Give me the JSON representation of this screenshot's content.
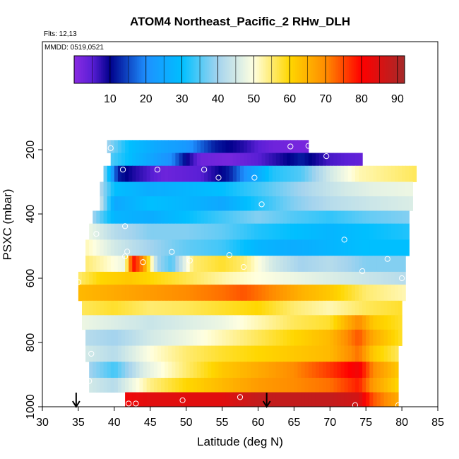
{
  "chart_data": {
    "type": "heatmap",
    "title": "ATOM4 Northeast_Pacific_2 RHw_DLH",
    "flights_note": "Flts: 12,13",
    "dates_note": "MMDD: 0519,0521",
    "xlabel": "Latitude (deg N)",
    "ylabel": "PSXC (mbar)",
    "xlim": [
      30,
      85
    ],
    "ylim": [
      1000,
      0
    ],
    "x_ticks": [
      30,
      35,
      40,
      45,
      50,
      55,
      60,
      65,
      70,
      75,
      80,
      85
    ],
    "y_ticks": [
      200,
      400,
      600,
      800,
      1000
    ],
    "colorbar": {
      "range": [
        0,
        92
      ],
      "ticks": [
        10,
        20,
        30,
        40,
        50,
        60,
        70,
        80,
        90
      ],
      "stops": [
        {
          "v": 0,
          "color": "#8a2be2"
        },
        {
          "v": 5,
          "color": "#5a1fd6"
        },
        {
          "v": 10,
          "color": "#00008b"
        },
        {
          "v": 20,
          "color": "#1e90ff"
        },
        {
          "v": 30,
          "color": "#00bfff"
        },
        {
          "v": 40,
          "color": "#a4d3ee"
        },
        {
          "v": 50,
          "color": "#ffffe0"
        },
        {
          "v": 60,
          "color": "#ffd700"
        },
        {
          "v": 70,
          "color": "#ff8c00"
        },
        {
          "v": 80,
          "color": "#ff0000"
        },
        {
          "v": 92,
          "color": "#a52a2a"
        }
      ]
    },
    "grid": false,
    "bands": [
      {
        "p_top": 170,
        "p_bot": 210,
        "segments": [
          [
            39,
            40
          ],
          [
            42,
            30
          ],
          [
            46,
            25
          ],
          [
            50,
            22
          ],
          [
            54,
            12
          ],
          [
            58,
            8
          ],
          [
            60,
            5
          ],
          [
            62,
            3
          ],
          [
            66,
            2
          ]
        ],
        "x_end": 66.8
      },
      {
        "p_top": 210,
        "p_bot": 250,
        "segments": [
          [
            39.5,
            35
          ],
          [
            43,
            28
          ],
          [
            48,
            20
          ],
          [
            50,
            10
          ],
          [
            52,
            3
          ],
          [
            56,
            2
          ],
          [
            60,
            5
          ],
          [
            66,
            12
          ],
          [
            70,
            6
          ],
          [
            74.5,
            4
          ]
        ],
        "x_end": 74.5
      },
      {
        "p_top": 250,
        "p_bot": 300,
        "segments": [
          [
            38.5,
            40
          ],
          [
            40.5,
            12
          ],
          [
            43,
            8
          ],
          [
            47,
            3
          ],
          [
            52,
            5
          ],
          [
            56,
            12
          ],
          [
            58,
            20
          ],
          [
            62,
            32
          ],
          [
            66,
            35
          ],
          [
            70,
            45
          ],
          [
            74,
            52
          ],
          [
            82,
            56
          ]
        ],
        "x_end": 82
      },
      {
        "p_top": 300,
        "p_bot": 345,
        "segments": [
          [
            38,
            42
          ],
          [
            40,
            30
          ],
          [
            45,
            26
          ],
          [
            50,
            28
          ],
          [
            55,
            30
          ],
          [
            60,
            34
          ],
          [
            64,
            38
          ],
          [
            68,
            42
          ],
          [
            72,
            45
          ],
          [
            76,
            47
          ],
          [
            81.5,
            48
          ]
        ],
        "x_end": 81.5
      },
      {
        "p_top": 345,
        "p_bot": 390,
        "segments": [
          [
            38,
            45
          ],
          [
            40,
            25
          ],
          [
            45,
            30
          ],
          [
            50,
            28
          ],
          [
            55,
            25
          ],
          [
            60,
            32
          ],
          [
            65,
            38
          ],
          [
            70,
            42
          ],
          [
            75,
            44
          ],
          [
            81.5,
            46
          ]
        ],
        "x_end": 81.5
      },
      {
        "p_top": 390,
        "p_bot": 430,
        "segments": [
          [
            37,
            40
          ],
          [
            40,
            28
          ],
          [
            45,
            26
          ],
          [
            50,
            30
          ],
          [
            55,
            34
          ],
          [
            60,
            38
          ],
          [
            65,
            35
          ],
          [
            70,
            33
          ],
          [
            75,
            36
          ],
          [
            81,
            38
          ]
        ],
        "x_end": 81
      },
      {
        "p_top": 430,
        "p_bot": 480,
        "segments": [
          [
            36.5,
            48
          ],
          [
            40,
            42
          ],
          [
            45,
            38
          ],
          [
            50,
            38
          ],
          [
            55,
            36
          ],
          [
            60,
            32
          ],
          [
            65,
            30
          ],
          [
            70,
            28
          ],
          [
            75,
            30
          ],
          [
            81,
            32
          ]
        ],
        "x_end": 81
      },
      {
        "p_top": 480,
        "p_bot": 530,
        "segments": [
          [
            36,
            52
          ],
          [
            40,
            45
          ],
          [
            45,
            40
          ],
          [
            50,
            36
          ],
          [
            55,
            34
          ],
          [
            60,
            28
          ],
          [
            65,
            26
          ],
          [
            70,
            28
          ],
          [
            75,
            30
          ],
          [
            81,
            30
          ]
        ],
        "x_end": 81
      },
      {
        "p_top": 530,
        "p_bot": 580,
        "segments": [
          [
            36,
            55
          ],
          [
            41.5,
            48
          ],
          [
            42.5,
            80
          ],
          [
            44,
            70
          ],
          [
            46,
            40
          ],
          [
            48,
            35
          ],
          [
            51,
            55
          ],
          [
            55,
            58
          ],
          [
            58,
            55
          ],
          [
            62,
            45
          ],
          [
            66,
            40
          ],
          [
            70,
            42
          ],
          [
            75,
            38
          ],
          [
            80.5,
            38
          ]
        ],
        "x_end": 80.5
      },
      {
        "p_top": 580,
        "p_bot": 620,
        "segments": [
          [
            35,
            55
          ],
          [
            38,
            60
          ],
          [
            42,
            62
          ],
          [
            48,
            58
          ],
          [
            52,
            55
          ],
          [
            56,
            52
          ],
          [
            60,
            50
          ],
          [
            65,
            48
          ],
          [
            70,
            46
          ],
          [
            75,
            44
          ],
          [
            80.5,
            42
          ]
        ],
        "x_end": 80.5
      },
      {
        "p_top": 620,
        "p_bot": 670,
        "segments": [
          [
            35,
            64
          ],
          [
            40,
            66
          ],
          [
            45,
            68
          ],
          [
            50,
            70
          ],
          [
            55,
            72
          ],
          [
            58,
            74
          ],
          [
            62,
            70
          ],
          [
            66,
            65
          ],
          [
            70,
            62
          ],
          [
            75,
            55
          ],
          [
            80.5,
            52
          ]
        ],
        "x_end": 80.5
      },
      {
        "p_top": 670,
        "p_bot": 715,
        "segments": [
          [
            35.5,
            56
          ],
          [
            40,
            58
          ],
          [
            45,
            55
          ],
          [
            50,
            56
          ],
          [
            55,
            58
          ],
          [
            60,
            60
          ],
          [
            65,
            55
          ],
          [
            70,
            52
          ],
          [
            75,
            56
          ],
          [
            80,
            58
          ]
        ],
        "x_end": 80
      },
      {
        "p_top": 715,
        "p_bot": 760,
        "segments": [
          [
            35.5,
            48
          ],
          [
            40,
            46
          ],
          [
            45,
            44
          ],
          [
            50,
            46
          ],
          [
            55,
            48
          ],
          [
            60,
            52
          ],
          [
            65,
            56
          ],
          [
            70,
            58
          ],
          [
            74,
            70
          ],
          [
            76,
            62
          ],
          [
            80,
            58
          ]
        ],
        "x_end": 80
      },
      {
        "p_top": 760,
        "p_bot": 810,
        "segments": [
          [
            36,
            42
          ],
          [
            40,
            40
          ],
          [
            45,
            45
          ],
          [
            50,
            48
          ],
          [
            55,
            52
          ],
          [
            60,
            56
          ],
          [
            65,
            60
          ],
          [
            70,
            64
          ],
          [
            74,
            74
          ],
          [
            76,
            66
          ],
          [
            80,
            58
          ]
        ],
        "x_end": 80
      },
      {
        "p_top": 810,
        "p_bot": 860,
        "segments": [
          [
            36,
            45
          ],
          [
            40,
            42
          ],
          [
            45,
            50
          ],
          [
            50,
            55
          ],
          [
            55,
            58
          ],
          [
            60,
            60
          ],
          [
            65,
            62
          ],
          [
            70,
            64
          ],
          [
            74,
            72
          ],
          [
            76,
            62
          ],
          [
            79.5,
            56
          ]
        ],
        "x_end": 79.5
      },
      {
        "p_top": 860,
        "p_bot": 910,
        "segments": [
          [
            36.5,
            40
          ],
          [
            40,
            34
          ],
          [
            44,
            46
          ],
          [
            50,
            55
          ],
          [
            55,
            62
          ],
          [
            60,
            66
          ],
          [
            65,
            70
          ],
          [
            70,
            76
          ],
          [
            74,
            82
          ],
          [
            76,
            70
          ],
          [
            79.5,
            62
          ]
        ],
        "x_end": 79.5
      },
      {
        "p_top": 910,
        "p_bot": 955,
        "segments": [
          [
            36.5,
            45
          ],
          [
            40,
            42
          ],
          [
            45,
            54
          ],
          [
            50,
            60
          ],
          [
            55,
            64
          ],
          [
            60,
            68
          ],
          [
            65,
            70
          ],
          [
            70,
            72
          ],
          [
            74,
            78
          ],
          [
            76,
            68
          ],
          [
            79.5,
            60
          ]
        ],
        "x_end": 79.5
      },
      {
        "p_top": 955,
        "p_bot": 1000,
        "segments": [
          [
            41.5,
            82
          ],
          [
            45,
            84
          ],
          [
            50,
            84
          ],
          [
            55,
            84
          ],
          [
            60,
            88
          ],
          [
            65,
            88
          ],
          [
            70,
            88
          ],
          [
            74,
            86
          ],
          [
            76,
            74
          ],
          [
            79.5,
            66
          ]
        ],
        "x_end": 79.5
      }
    ],
    "points": [
      {
        "lat": 39.5,
        "p": 195
      },
      {
        "lat": 64.5,
        "p": 190
      },
      {
        "lat": 67,
        "p": 188
      },
      {
        "lat": 69.5,
        "p": 220
      },
      {
        "lat": 41.2,
        "p": 262
      },
      {
        "lat": 46,
        "p": 262
      },
      {
        "lat": 52.5,
        "p": 262
      },
      {
        "lat": 54.5,
        "p": 287
      },
      {
        "lat": 59.5,
        "p": 287
      },
      {
        "lat": 60.5,
        "p": 370
      },
      {
        "lat": 41.5,
        "p": 438
      },
      {
        "lat": 37.5,
        "p": 462
      },
      {
        "lat": 72,
        "p": 480
      },
      {
        "lat": 41.8,
        "p": 517
      },
      {
        "lat": 41.5,
        "p": 532
      },
      {
        "lat": 48,
        "p": 518
      },
      {
        "lat": 56,
        "p": 528
      },
      {
        "lat": 44,
        "p": 550
      },
      {
        "lat": 50.5,
        "p": 545
      },
      {
        "lat": 58,
        "p": 565
      },
      {
        "lat": 78,
        "p": 540
      },
      {
        "lat": 74.5,
        "p": 578
      },
      {
        "lat": 80,
        "p": 600
      },
      {
        "lat": 35,
        "p": 612
      },
      {
        "lat": 36.8,
        "p": 835
      },
      {
        "lat": 36.5,
        "p": 920
      },
      {
        "lat": 36,
        "p": 955
      },
      {
        "lat": 42,
        "p": 990
      },
      {
        "lat": 43,
        "p": 990
      },
      {
        "lat": 49.5,
        "p": 980
      },
      {
        "lat": 57.5,
        "p": 970
      },
      {
        "lat": 73.5,
        "p": 995
      },
      {
        "lat": 79.5,
        "p": 995
      }
    ],
    "arrows": [
      {
        "lat": 34.7
      },
      {
        "lat": 61.2
      }
    ]
  }
}
